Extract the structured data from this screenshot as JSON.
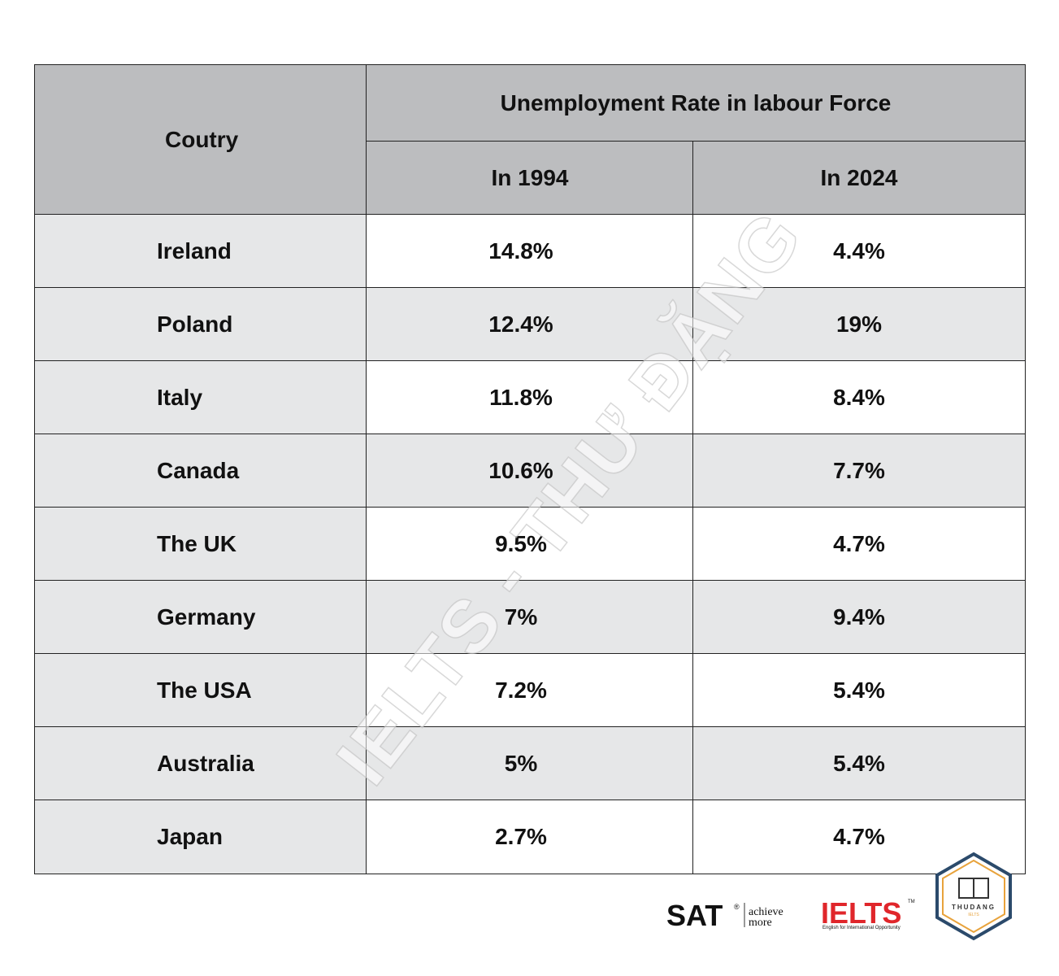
{
  "table": {
    "header": {
      "country": "Coutry",
      "group": "Unemployment Rate in labour Force",
      "columns": [
        "In 1994",
        "In 2024"
      ]
    },
    "rows": [
      [
        "Ireland",
        "14.8%",
        "4.4%"
      ],
      [
        "Poland",
        "12.4%",
        "19%"
      ],
      [
        "Italy",
        "11.8%",
        "8.4%"
      ],
      [
        "Canada",
        "10.6%",
        "7.7%"
      ],
      [
        "The UK",
        "9.5%",
        "4.7%"
      ],
      [
        "Germany",
        "7%",
        "9.4%"
      ],
      [
        "The USA",
        "7.2%",
        "5.4%"
      ],
      [
        "Australia",
        "5%",
        "5.4%"
      ],
      [
        "Japan",
        "2.7%",
        "4.7%"
      ]
    ]
  },
  "watermark": "IELTS - THƯ ĐẶNG",
  "logos": {
    "sat": "SAT",
    "sat_mark": "®",
    "sat_tagline_1": "achieve",
    "sat_tagline_2": "more",
    "ielts": "IELTS",
    "ielts_mark": "TM",
    "ielts_tagline": "English for International Opportunity",
    "badge_name": "THUDANG",
    "badge_sub": "IELTS"
  }
}
